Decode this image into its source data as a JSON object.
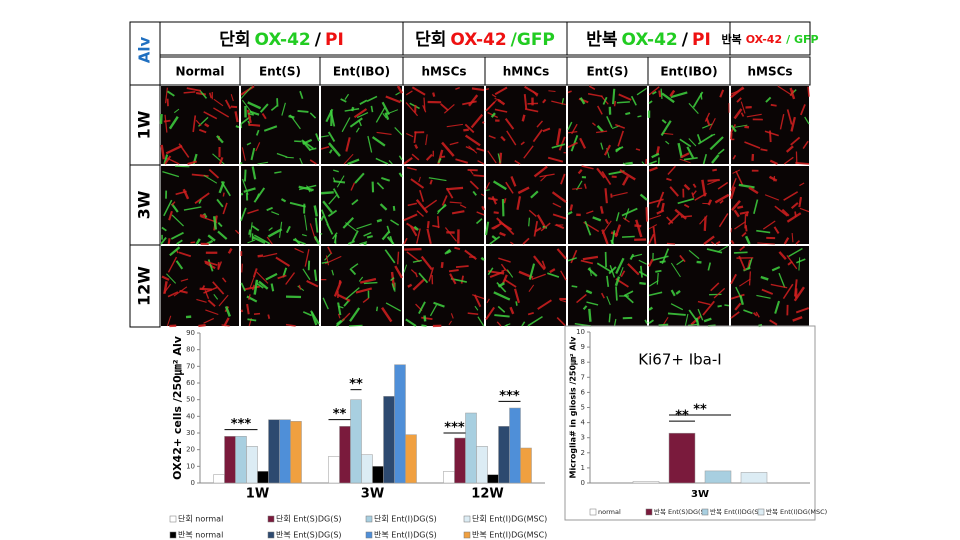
{
  "panel_grid": {
    "corner": "Alv",
    "groups": [
      {
        "parts": [
          {
            "text": "단회",
            "color": "#000000"
          },
          {
            "text": "OX-42",
            "color": "#22cc22"
          },
          {
            "text": "/",
            "color": "#000000"
          },
          {
            "text": "PI",
            "color": "#ee1111"
          }
        ]
      },
      {
        "parts": [
          {
            "text": "단회",
            "color": "#000000"
          },
          {
            "text": "OX-42",
            "color": "#ee1111"
          },
          {
            "text": "/GFP",
            "color": "#22cc22"
          }
        ]
      },
      {
        "parts": [
          {
            "text": "반복",
            "color": "#000000"
          },
          {
            "text": "OX-42",
            "color": "#22cc22"
          },
          {
            "text": "/",
            "color": "#000000"
          },
          {
            "text": "PI",
            "color": "#ee1111"
          }
        ]
      },
      {
        "parts": [
          {
            "text": "반복",
            "color": "#000000"
          },
          {
            "text": "OX-42",
            "color": "#ee1111"
          },
          {
            "text": "/ GFP",
            "color": "#22cc22"
          }
        ]
      }
    ],
    "columns": [
      "Normal",
      "Ent(S)",
      "Ent(IBO)",
      "hMSCs",
      "hMNCs",
      "Ent(S)",
      "Ent(IBO)",
      "hMSCs"
    ],
    "rows": [
      "1W",
      "3W",
      "12W"
    ]
  },
  "chart_data": [
    {
      "type": "bar",
      "y_label": "OX42+ cells /250㎛² Alv",
      "categories": [
        "1W",
        "3W",
        "12W"
      ],
      "ylim": [
        0,
        90
      ],
      "yticks": [
        0,
        10,
        20,
        30,
        40,
        50,
        60,
        70,
        80,
        90
      ],
      "series": [
        {
          "name": "단회 normal",
          "color": "#ffffff",
          "values": [
            5,
            16,
            7
          ]
        },
        {
          "name": "단회 Ent(S)DG(S)",
          "color": "#7a1a3c",
          "values": [
            28,
            34,
            27
          ]
        },
        {
          "name": "단회 Ent(I)DG(S)",
          "color": "#a8cfe0",
          "values": [
            28,
            50,
            42
          ]
        },
        {
          "name": "단회 Ent(I)DG(MSC)",
          "color": "#dcecf4",
          "values": [
            22,
            17,
            22
          ]
        },
        {
          "name": "반복 normal",
          "color": "#000000",
          "values": [
            7,
            10,
            5
          ]
        },
        {
          "name": "반복 Ent(S)DG(S)",
          "color": "#2d4a70",
          "values": [
            38,
            52,
            34
          ]
        },
        {
          "name": "반복 Ent(I)DG(S)",
          "color": "#4f8fd8",
          "values": [
            38,
            71,
            45
          ]
        },
        {
          "name": "반복 Ent(I)DG(MSC)",
          "color": "#f0a040",
          "values": [
            37,
            29,
            21
          ]
        }
      ],
      "annotations": [
        "***",
        "**",
        "**",
        "***",
        "***"
      ]
    },
    {
      "type": "bar",
      "title": "Ki67+ Iba-I",
      "y_label": "Microglia# in gliosis /250㎛² Alv",
      "categories": [
        "3W"
      ],
      "ylim": [
        0,
        10
      ],
      "yticks": [
        0,
        1,
        2,
        3,
        4,
        5,
        6,
        7,
        8,
        9,
        10
      ],
      "series": [
        {
          "name": "normal",
          "color": "#ffffff",
          "values": [
            0.1
          ]
        },
        {
          "name": "반복 Ent(S)DG(S)",
          "color": "#7a1a3c",
          "values": [
            3.3
          ]
        },
        {
          "name": "반복 Ent(I)DG(S)",
          "color": "#a8cfe0",
          "values": [
            0.8
          ]
        },
        {
          "name": "반복 Ent(I)DG(MSC)",
          "color": "#dcecf4",
          "values": [
            0.7
          ]
        }
      ],
      "annotations": [
        "**",
        "**"
      ]
    }
  ]
}
